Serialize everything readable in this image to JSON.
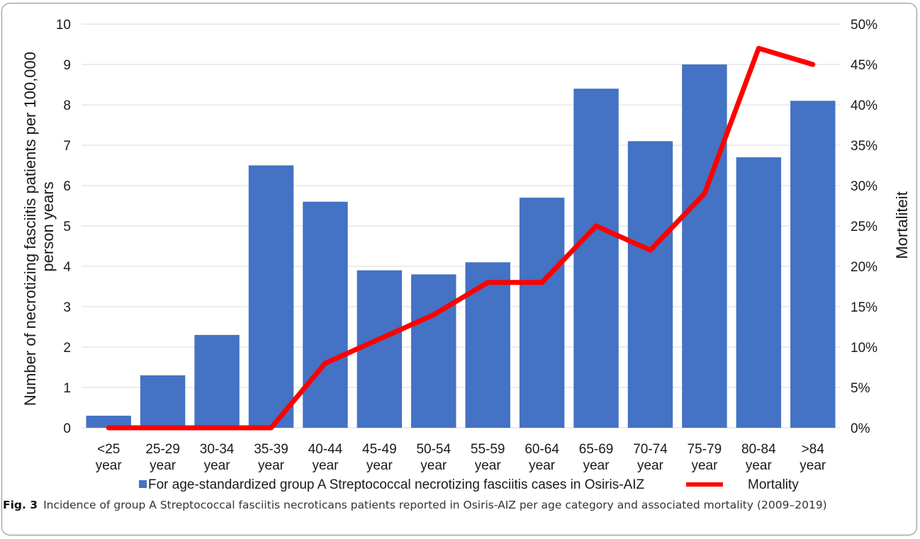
{
  "figure": {
    "label": "Fig. 3",
    "caption": "Incidence of group A Streptococcal fasciitis necroticans patients reported in Osiris-AIZ per age category and associated mortality (2009–2019)"
  },
  "chart_data": {
    "type": "bar",
    "categories": [
      [
        "<25",
        "year"
      ],
      [
        "25-29",
        "year"
      ],
      [
        "30-34",
        "year"
      ],
      [
        "35-39",
        "year"
      ],
      [
        "40-44",
        "year"
      ],
      [
        "45-49",
        "year"
      ],
      [
        "50-54",
        "year"
      ],
      [
        "55-59",
        "year"
      ],
      [
        "60-64",
        "year"
      ],
      [
        "65-69",
        "year"
      ],
      [
        "70-74",
        "year"
      ],
      [
        "75-79",
        "year"
      ],
      [
        "80-84",
        "year"
      ],
      [
        ">84",
        "year"
      ]
    ],
    "series": [
      {
        "name": "For age-standardized group A Streptococcal necrotizing fasciitis cases in Osiris-AIZ",
        "type": "bar",
        "axis": "left",
        "color": "#4472C4",
        "values": [
          0.3,
          1.3,
          2.3,
          6.5,
          5.6,
          3.9,
          3.8,
          4.1,
          5.7,
          8.4,
          7.1,
          9.0,
          6.7,
          8.1
        ]
      },
      {
        "name": "Mortality",
        "type": "line",
        "axis": "right",
        "color": "#FF0000",
        "values": [
          0,
          0,
          0,
          0,
          8,
          11,
          14,
          18,
          18,
          25,
          22,
          29,
          47,
          45
        ]
      }
    ],
    "ylabel": "Number of necrotizing fasciitis patients per 100,000 person years",
    "ylabel_lines": [
      "Number of necrotizing fasciitis patients per 100,000",
      "person years"
    ],
    "y2label": "Mortaliteit",
    "ylim": [
      0,
      10
    ],
    "y2lim": [
      0,
      50
    ],
    "yticks": [
      "0",
      "1",
      "2",
      "3",
      "4",
      "5",
      "6",
      "7",
      "8",
      "9",
      "10"
    ],
    "y2ticks": [
      "0%",
      "5%",
      "10%",
      "15%",
      "20%",
      "25%",
      "30%",
      "35%",
      "40%",
      "45%",
      "50%"
    ],
    "grid": true,
    "legend_position": "bottom"
  }
}
